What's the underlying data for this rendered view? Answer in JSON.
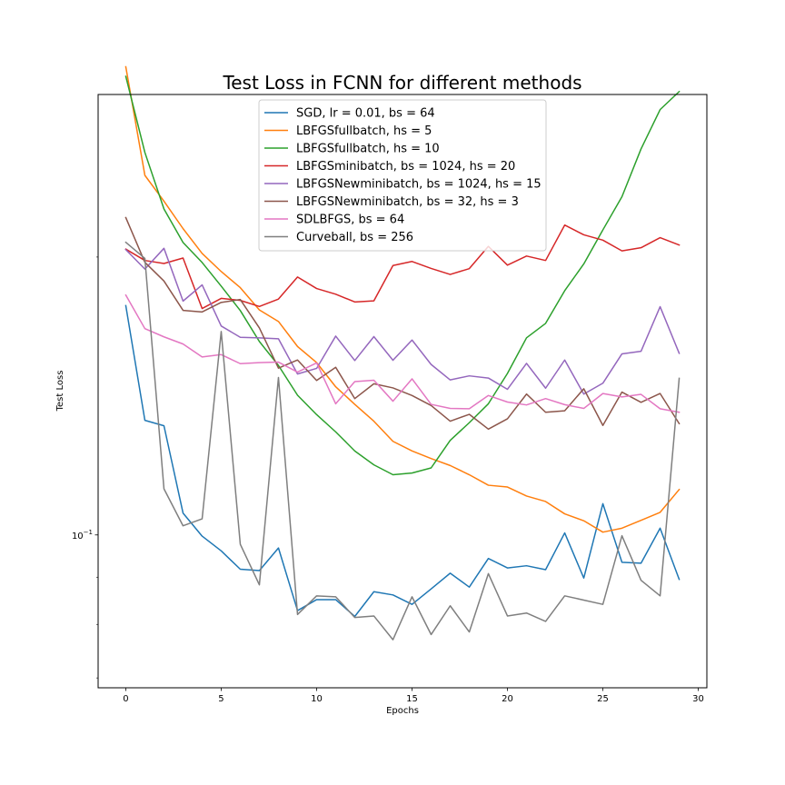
{
  "chart_data": {
    "type": "line",
    "title": "Test Loss in FCNN for different methods",
    "xlabel": "Epochs",
    "ylabel": "Test Loss",
    "xlim": [
      -1.45,
      30.45
    ],
    "ylim": [
      0.0683,
      0.3
    ],
    "yscale": "log",
    "xticks": [
      0,
      5,
      10,
      15,
      20,
      25,
      30
    ],
    "yticks": [
      {
        "value": 0.1,
        "label_base": "10",
        "label_exp": "−1"
      }
    ],
    "grid": false,
    "legend_position": "upper center",
    "x": [
      0,
      1,
      2,
      3,
      4,
      5,
      6,
      7,
      8,
      9,
      10,
      11,
      12,
      13,
      14,
      15,
      16,
      17,
      18,
      19,
      20,
      21,
      22,
      23,
      24,
      25,
      26,
      27,
      28,
      29
    ],
    "series": [
      {
        "name": "SGD, lr = 0.01, bs = 64",
        "color": "#1f77b4",
        "values": [
          0.1772,
          0.1331,
          0.1313,
          0.1056,
          0.0997,
          0.0961,
          0.0918,
          0.0915,
          0.0968,
          0.0828,
          0.0851,
          0.0851,
          0.0816,
          0.0868,
          0.0861,
          0.0841,
          0.0874,
          0.0909,
          0.0878,
          0.0943,
          0.0921,
          0.0926,
          0.0917,
          0.1005,
          0.0898,
          0.1081,
          0.0934,
          0.0932,
          0.1017,
          0.0895
        ]
      },
      {
        "name": "LBFGSfullbatch, hs = 5",
        "color": "#ff7f0e",
        "values": [
          0.3215,
          0.2452,
          0.2299,
          0.2147,
          0.2018,
          0.1929,
          0.1853,
          0.1753,
          0.1703,
          0.16,
          0.1537,
          0.1447,
          0.1385,
          0.1328,
          0.1263,
          0.1233,
          0.121,
          0.1189,
          0.1162,
          0.1132,
          0.1127,
          0.1102,
          0.1087,
          0.1054,
          0.1036,
          0.1007,
          0.1017,
          0.1037,
          0.1058,
          0.112
        ]
      },
      {
        "name": "LBFGSfullbatch, hs = 10",
        "color": "#2ca02c",
        "values": [
          0.3139,
          0.2596,
          0.2255,
          0.2074,
          0.1973,
          0.186,
          0.175,
          0.162,
          0.1526,
          0.1417,
          0.135,
          0.1293,
          0.1233,
          0.1191,
          0.1162,
          0.1167,
          0.1182,
          0.1266,
          0.1323,
          0.1387,
          0.1496,
          0.1635,
          0.1695,
          0.1839,
          0.1966,
          0.214,
          0.2325,
          0.2619,
          0.2889,
          0.3022
        ]
      },
      {
        "name": "LBFGSminibatch, bs = 1024, hs = 20",
        "color": "#d62728",
        "values": [
          0.204,
          0.1983,
          0.1968,
          0.1995,
          0.1759,
          0.1804,
          0.1795,
          0.1768,
          0.1801,
          0.1903,
          0.1849,
          0.1823,
          0.1788,
          0.1793,
          0.1958,
          0.1978,
          0.1944,
          0.1915,
          0.1943,
          0.2054,
          0.196,
          0.2005,
          0.1983,
          0.2166,
          0.2114,
          0.2086,
          0.2031,
          0.2047,
          0.2099,
          0.2061
        ]
      },
      {
        "name": "LBFGSNewminibatch, bs = 1024, hs = 15",
        "color": "#9467bd",
        "values": [
          0.2037,
          0.1941,
          0.2044,
          0.1792,
          0.1866,
          0.1684,
          0.1637,
          0.1635,
          0.1631,
          0.1494,
          0.1515,
          0.1642,
          0.1545,
          0.164,
          0.1546,
          0.1626,
          0.153,
          0.1472,
          0.1487,
          0.1479,
          0.1438,
          0.1534,
          0.1442,
          0.1547,
          0.1421,
          0.146,
          0.1571,
          0.1581,
          0.1767,
          0.1573
        ]
      },
      {
        "name": "LBFGSNewminibatch, bs = 32, hs = 3",
        "color": "#8c564b",
        "values": [
          0.2207,
          0.1974,
          0.1884,
          0.1751,
          0.1744,
          0.1786,
          0.1799,
          0.1676,
          0.1516,
          0.1547,
          0.147,
          0.1519,
          0.1405,
          0.1458,
          0.1443,
          0.1416,
          0.1381,
          0.1328,
          0.1351,
          0.1302,
          0.1336,
          0.1421,
          0.1358,
          0.1363,
          0.144,
          0.1314,
          0.1428,
          0.1392,
          0.1423,
          0.132
        ]
      },
      {
        "name": "SDLBFGS, bs = 64",
        "color": "#e377c2",
        "values": [
          0.1819,
          0.1673,
          0.1639,
          0.161,
          0.1559,
          0.1568,
          0.1533,
          0.1537,
          0.1539,
          0.1501,
          0.1536,
          0.1387,
          0.1466,
          0.1471,
          0.1396,
          0.1476,
          0.1385,
          0.1371,
          0.137,
          0.1416,
          0.1393,
          0.1383,
          0.1405,
          0.1384,
          0.1371,
          0.1423,
          0.1411,
          0.142,
          0.137,
          0.1358
        ]
      },
      {
        "name": "Curveball, bs = 256",
        "color": "#7f7f7f",
        "values": [
          0.2075,
          0.1993,
          0.1122,
          0.1023,
          0.1041,
          0.1661,
          0.0977,
          0.0883,
          0.1481,
          0.082,
          0.0859,
          0.0857,
          0.0814,
          0.0817,
          0.077,
          0.0857,
          0.078,
          0.0838,
          0.0785,
          0.0908,
          0.0817,
          0.0823,
          0.0806,
          0.0859,
          0.085,
          0.0841,
          0.0998,
          0.0893,
          0.0859,
          0.1478
        ]
      }
    ]
  }
}
